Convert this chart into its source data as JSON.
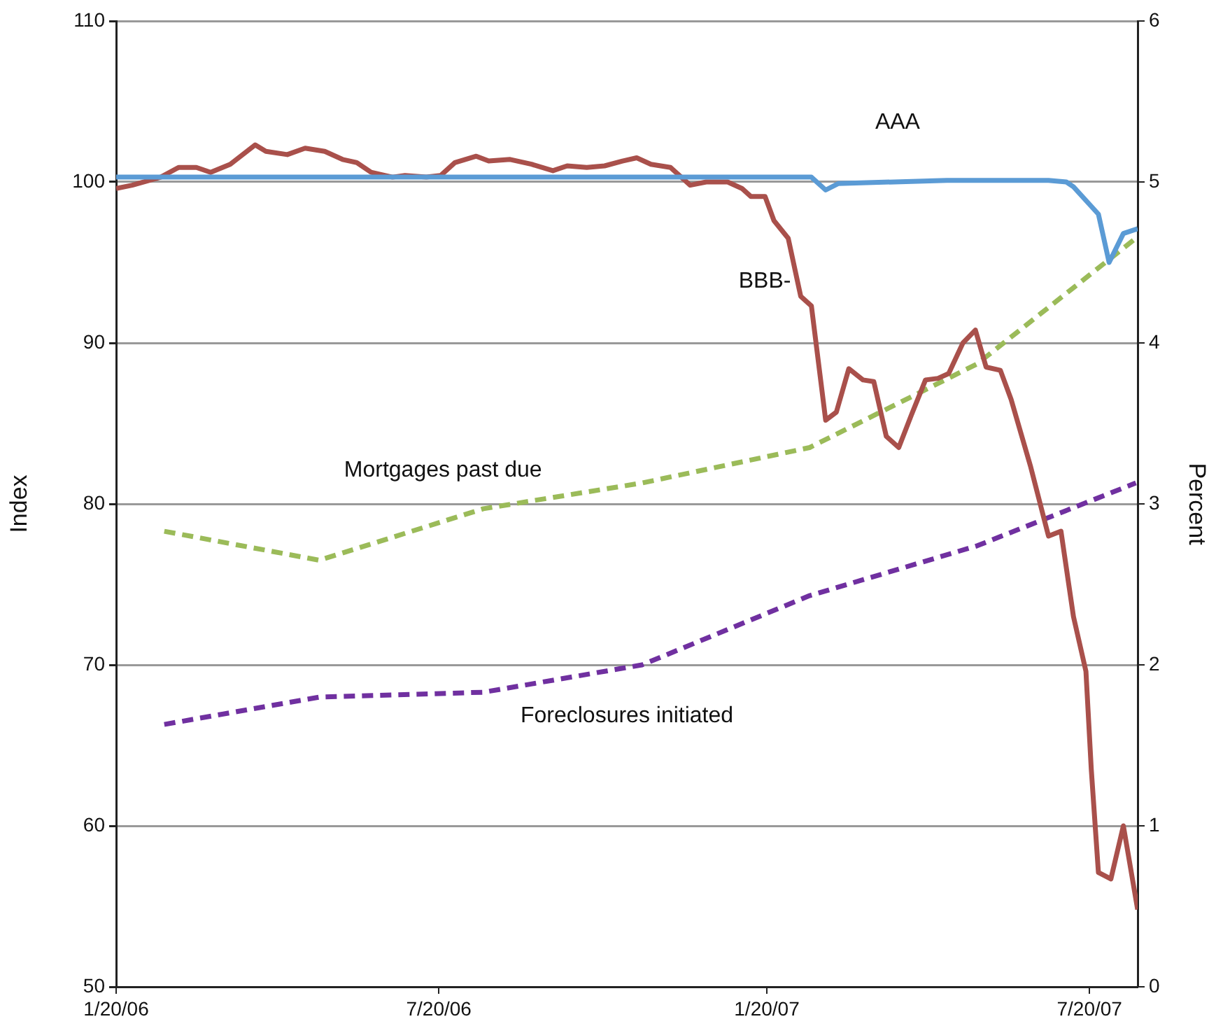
{
  "chart_data": {
    "type": "line",
    "xlabel": null,
    "ylabel": "Index",
    "y2label": "Percent",
    "xlim": [
      "2006-01-20",
      "2007-08-16"
    ],
    "xticks": [
      {
        "value": "2006-01-20",
        "label": "1/20/06"
      },
      {
        "value": "2006-07-20",
        "label": "7/20/06"
      },
      {
        "value": "2007-01-20",
        "label": "1/20/07"
      },
      {
        "value": "2007-07-20",
        "label": "7/20/07"
      }
    ],
    "ylim": [
      50,
      110
    ],
    "yticks": [
      50,
      60,
      70,
      80,
      90,
      100,
      110
    ],
    "y2lim": [
      0,
      6
    ],
    "y2ticks": [
      0,
      1,
      2,
      3,
      4,
      5,
      6
    ],
    "grid": "y",
    "legend": false,
    "marker": "none",
    "series": [
      {
        "name": "AAA",
        "color": "#5b9bd5",
        "line_style": "solid",
        "x": [
          "2006-01-20",
          "2006-03-01",
          "2006-05-01",
          "2006-07-01",
          "2006-09-01",
          "2006-11-01",
          "2007-01-01",
          "2007-02-14",
          "2007-02-22",
          "2007-03-01",
          "2007-05-01",
          "2007-06-27",
          "2007-07-07",
          "2007-07-11",
          "2007-07-25",
          "2007-07-31",
          "2007-08-08",
          "2007-08-16"
        ],
        "values": [
          100.3,
          100.3,
          100.3,
          100.3,
          100.3,
          100.3,
          100.3,
          100.3,
          99.5,
          99.9,
          100.1,
          100.1,
          100.0,
          99.7,
          98.0,
          95.0,
          96.8,
          97.1
        ]
      },
      {
        "name": "BBB-",
        "color": "#a9504b",
        "line_style": "solid",
        "x": [
          "2006-01-20",
          "2006-01-29",
          "2006-02-14",
          "2006-02-24",
          "2006-03-06",
          "2006-03-14",
          "2006-03-25",
          "2006-04-08",
          "2006-04-14",
          "2006-04-26",
          "2006-05-06",
          "2006-05-17",
          "2006-05-27",
          "2006-06-04",
          "2006-06-12",
          "2006-06-24",
          "2006-07-01",
          "2006-07-13",
          "2006-07-21",
          "2006-07-29",
          "2006-08-10",
          "2006-08-17",
          "2006-08-29",
          "2006-09-10",
          "2006-09-22",
          "2006-09-30",
          "2006-10-11",
          "2006-10-21",
          "2006-10-31",
          "2006-11-08",
          "2006-11-16",
          "2006-11-27",
          "2006-12-08",
          "2006-12-17",
          "2006-12-29",
          "2007-01-06",
          "2007-01-11",
          "2007-01-19",
          "2007-01-24",
          "2007-02-01",
          "2007-02-08",
          "2007-02-14",
          "2007-02-22",
          "2007-02-28",
          "2007-03-07",
          "2007-03-15",
          "2007-03-21",
          "2007-03-28",
          "2007-04-04",
          "2007-04-11",
          "2007-04-19",
          "2007-04-26",
          "2007-05-02",
          "2007-05-10",
          "2007-05-17",
          "2007-05-23",
          "2007-05-31",
          "2007-06-06",
          "2007-06-17",
          "2007-06-27",
          "2007-07-04",
          "2007-07-11",
          "2007-07-18",
          "2007-07-21",
          "2007-07-25",
          "2007-08-01",
          "2007-08-08",
          "2007-08-16"
        ],
        "values": [
          99.6,
          99.8,
          100.3,
          100.9,
          100.9,
          100.6,
          101.1,
          102.3,
          101.9,
          101.7,
          102.1,
          101.9,
          101.4,
          101.2,
          100.6,
          100.3,
          100.4,
          100.3,
          100.4,
          101.2,
          101.6,
          101.3,
          101.4,
          101.1,
          100.7,
          101.0,
          100.9,
          101.0,
          101.3,
          101.5,
          101.1,
          100.9,
          99.8,
          100.0,
          100.0,
          99.6,
          99.1,
          99.1,
          97.6,
          96.5,
          92.9,
          92.3,
          85.2,
          85.7,
          88.4,
          87.7,
          87.6,
          84.2,
          83.5,
          85.5,
          87.7,
          87.8,
          88.1,
          90.0,
          90.8,
          88.5,
          88.3,
          86.5,
          82.3,
          78.0,
          78.3,
          73.0,
          69.6,
          63.5,
          57.1,
          56.7,
          60.0,
          54.8
        ]
      },
      {
        "name": "Mortgages past due",
        "color": "#9bbb59",
        "line_style": "dashed",
        "axis": "y2",
        "x": [
          "2006-02-16",
          "2006-05-14",
          "2006-08-14",
          "2006-11-11",
          "2007-02-13",
          "2007-05-18",
          "2007-08-15"
        ],
        "values": [
          2.83,
          2.65,
          2.97,
          3.13,
          3.35,
          3.87,
          4.65
        ]
      },
      {
        "name": "Foreclosures initiated",
        "color": "#7030a0",
        "line_style": "dashed",
        "axis": "y2",
        "x": [
          "2006-02-16",
          "2006-05-14",
          "2006-08-14",
          "2006-11-11",
          "2007-02-13",
          "2007-05-18",
          "2007-08-15"
        ],
        "values": [
          1.63,
          1.8,
          1.83,
          2.0,
          2.43,
          2.74,
          3.13
        ]
      }
    ]
  }
}
